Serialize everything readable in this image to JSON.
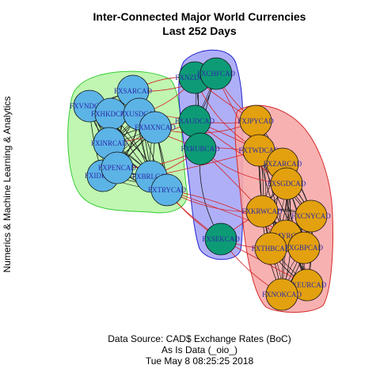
{
  "title_line1": "Inter-Connected Major World Currencies",
  "title_line2": "Last 252 Days",
  "side_label": "Numerics & Machine Learning & Analytics",
  "caption_line1": "Data Source: CAD$ Exchange Rates (BoC)",
  "caption_line2": "As Is Data (_oio_)",
  "caption_line3": "Tue May  8 08:25:25 2018",
  "groups": [
    {
      "name": "green",
      "fill": "#b9f5a9",
      "stroke": "#33cc33",
      "node_color": "#5cb3e6"
    },
    {
      "name": "blue",
      "fill": "#a6a6f7",
      "stroke": "#2222cc",
      "node_color": "#0d9b76"
    },
    {
      "name": "red",
      "fill": "#f7a8a8",
      "stroke": "#d42a2a",
      "node_color": "#e3a00f"
    }
  ],
  "nodes": [
    {
      "id": "FXSARCAD",
      "group": 0
    },
    {
      "id": "FXVNDCAD",
      "group": 0
    },
    {
      "id": "FXHKDCAD",
      "group": 0
    },
    {
      "id": "FXIDRCAD",
      "group": 0
    },
    {
      "id": "FXUSDCAD",
      "group": 0
    },
    {
      "id": "FXMXNCAD",
      "group": 0
    },
    {
      "id": "FXINRCAD",
      "group": 0
    },
    {
      "id": "FXPENCAD",
      "group": 0
    },
    {
      "id": "FXBRLCAD",
      "group": 0
    },
    {
      "id": "FXTRYCAD",
      "group": 0
    },
    {
      "id": "FXNZDCAD",
      "group": 1
    },
    {
      "id": "FXCHFCAD",
      "group": 1
    },
    {
      "id": "FXAUDCAD",
      "group": 1
    },
    {
      "id": "FXRUBCAD",
      "group": 1
    },
    {
      "id": "FXSEKCAD",
      "group": 1
    },
    {
      "id": "FXJPYCAD",
      "group": 2
    },
    {
      "id": "FXTWDCAD",
      "group": 2
    },
    {
      "id": "FXZARCAD",
      "group": 2
    },
    {
      "id": "FXSGDCAD",
      "group": 2
    },
    {
      "id": "FXKRWCAD",
      "group": 2
    },
    {
      "id": "FXCNYCAD",
      "group": 2
    },
    {
      "id": "FXMYRCAD",
      "group": 2
    },
    {
      "id": "FXTHBCAD",
      "group": 2
    },
    {
      "id": "FXGBPCAD",
      "group": 2
    },
    {
      "id": "FXEURCAD",
      "group": 2
    },
    {
      "id": "FXNOKCAD",
      "group": 2
    }
  ]
}
